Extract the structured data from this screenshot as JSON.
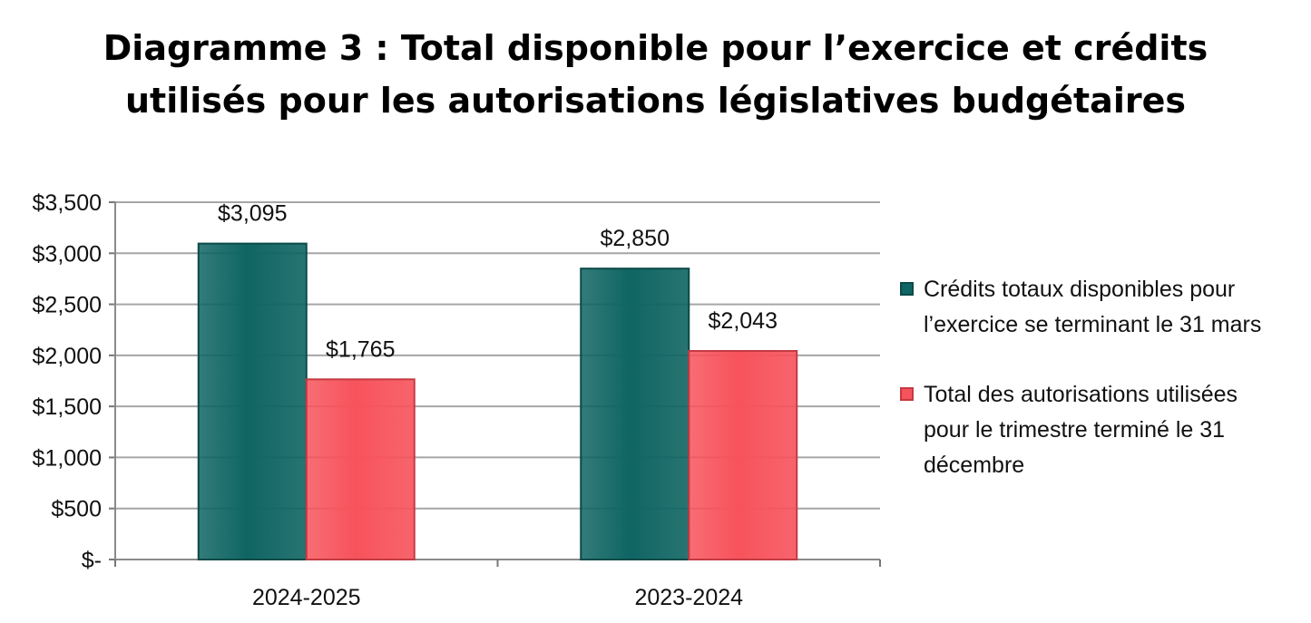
{
  "title": {
    "line1": "Diagramme 3 : Total disponible pour l’exercice et crédits",
    "line2": "utilisés pour les autorisations législatives budgétaires"
  },
  "colors": {
    "series1": "#0f6563",
    "series2": "#f7535c",
    "grid": "#a6a6a6"
  },
  "chart_data": {
    "type": "bar",
    "categories": [
      "2024-2025",
      "2023-2024"
    ],
    "series": [
      {
        "name": "Crédits totaux disponibles pour l’exercice se terminant le 31 mars",
        "values": [
          3095,
          2850
        ],
        "labels": [
          "$3,095",
          "$2,850"
        ]
      },
      {
        "name": "Total des autorisations utilisées pour le trimestre terminé le 31 décembre",
        "values": [
          1765,
          2043
        ],
        "labels": [
          "$1,765",
          "$2,043"
        ]
      }
    ],
    "ylim": [
      0,
      3500
    ],
    "yticks": [
      0,
      500,
      1000,
      1500,
      2000,
      2500,
      3000,
      3500
    ],
    "ytick_labels": [
      "$-",
      "$500",
      "$1,000",
      "$1,500",
      "$2,000",
      "$2,500",
      "$3,000",
      "$3,500"
    ],
    "grid": true,
    "legend": "right"
  },
  "legend": {
    "items": [
      {
        "line1": "Crédits totaux disponibles pour",
        "line2": "l’exercice se terminant le 31 mars"
      },
      {
        "line1": "Total des autorisations utilisées",
        "line2": "pour le trimestre terminé le 31",
        "line3": "décembre"
      }
    ]
  }
}
